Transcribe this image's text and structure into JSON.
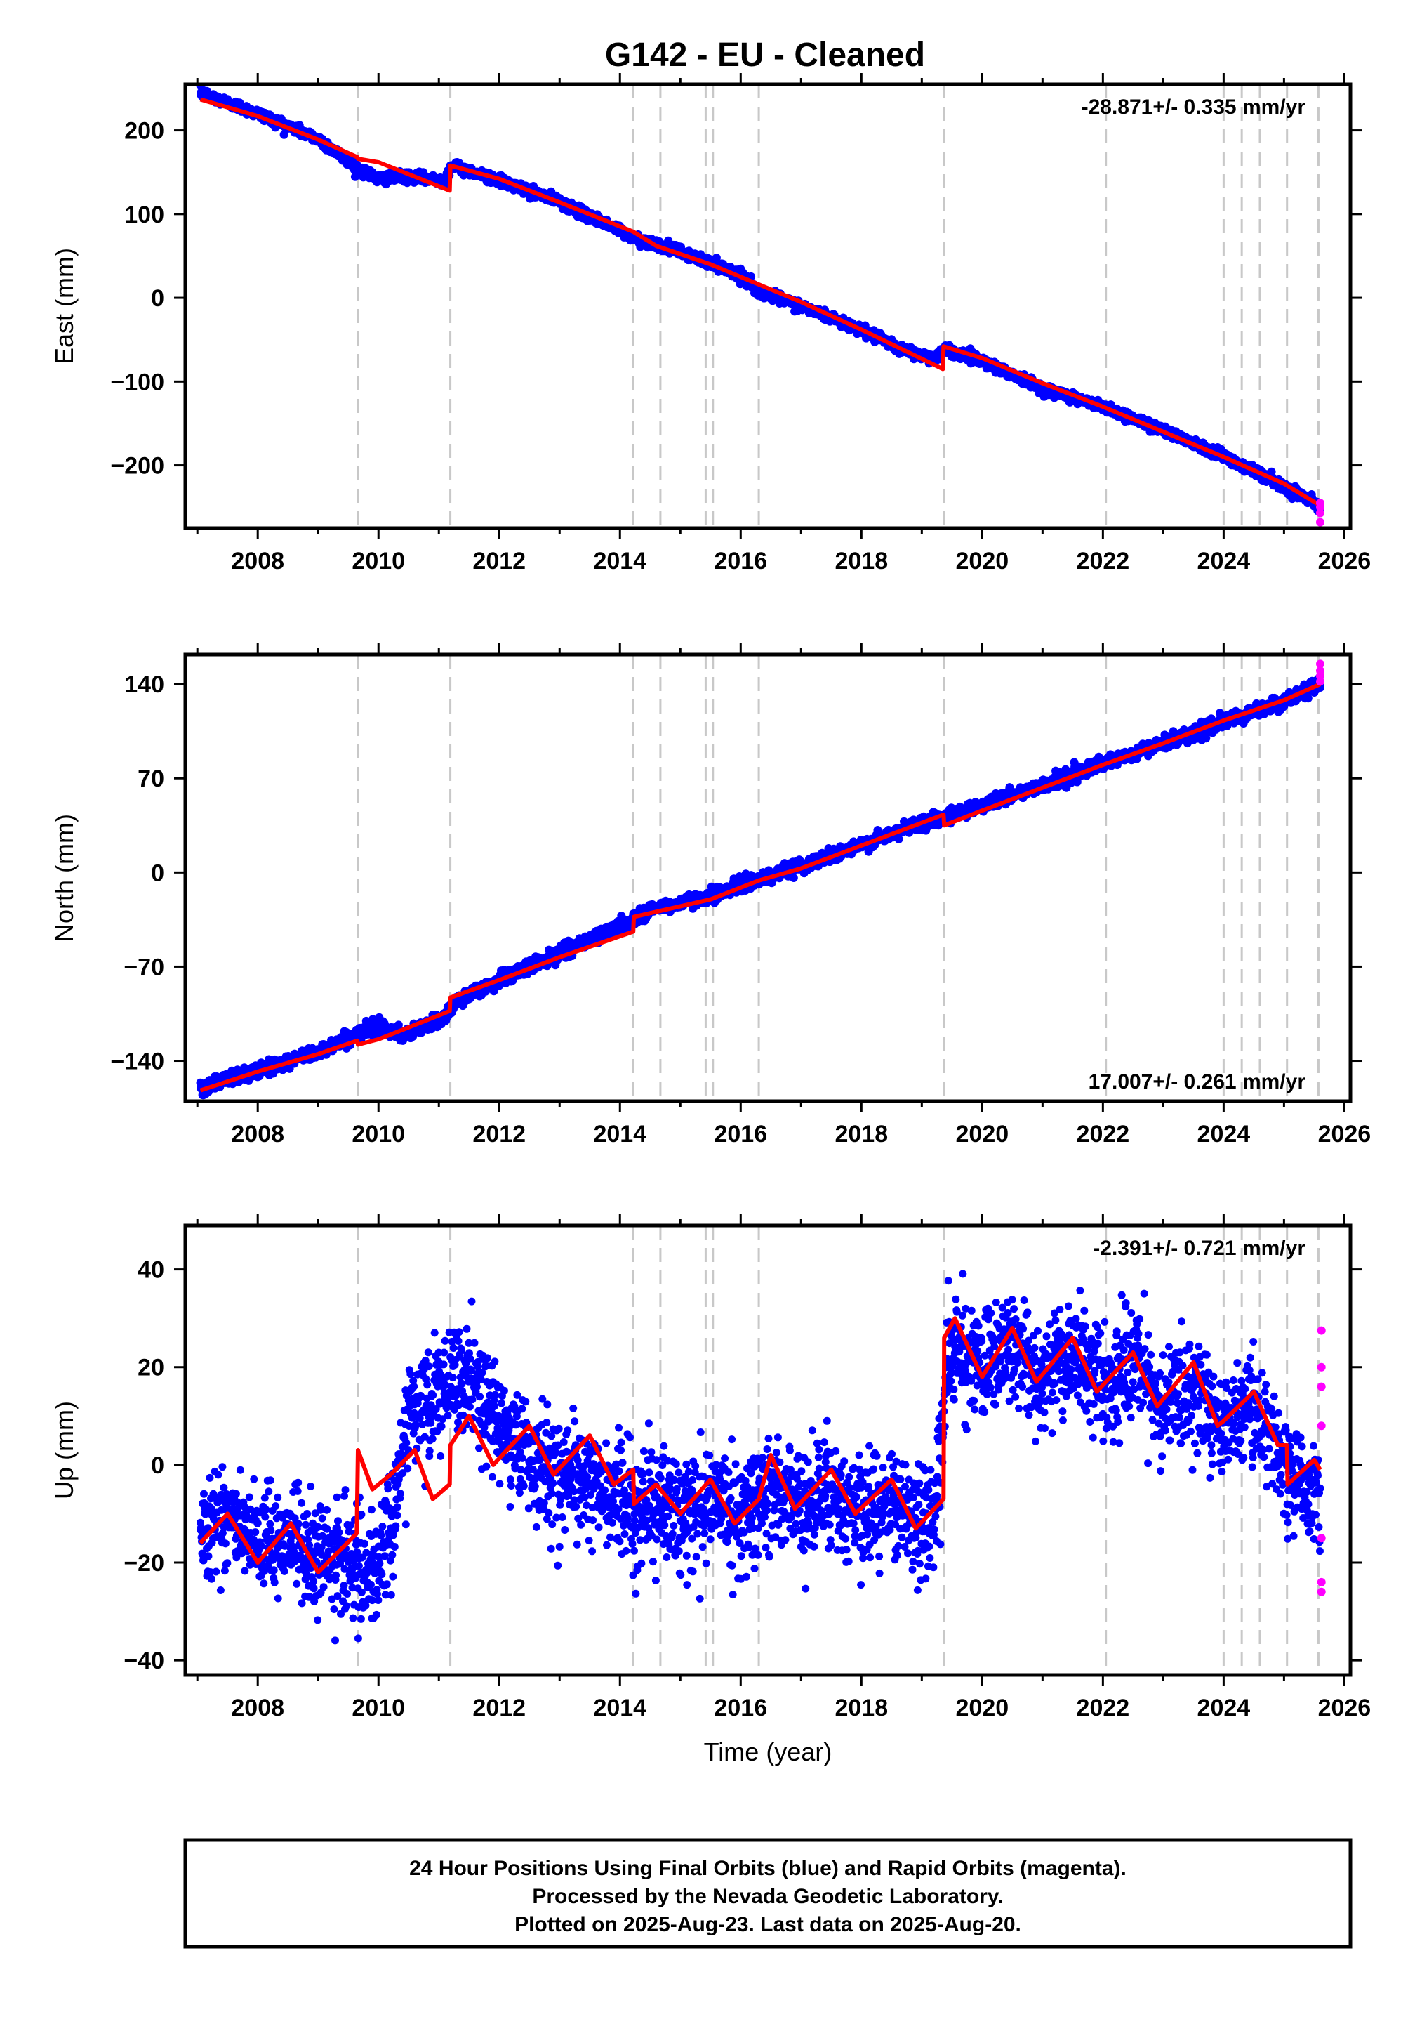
{
  "figure": {
    "title": "G142  - EU - Cleaned",
    "footer_lines": [
      "24 Hour Positions Using Final Orbits (blue) and Rapid Orbits (magenta).",
      "Processed by the Nevada Geodetic Laboratory.",
      "Plotted on 2025-Aug-23. Last data on 2025-Aug-20."
    ],
    "colors": {
      "final_orbits": "#0000ff",
      "rapid_orbits": "#ff00ff",
      "model": "#ff0000",
      "step_lines": "#c8c8c8"
    }
  },
  "chart_data": [
    {
      "type": "scatter",
      "name": "east",
      "ylabel": "East (mm)",
      "xlabel": "",
      "rate_label": "-28.871+/- 0.335 mm/yr",
      "rate_position": "top-right",
      "xlim": [
        2006.8,
        2026.1
      ],
      "ylim": [
        -275,
        255
      ],
      "xticks": [
        2008,
        2010,
        2012,
        2014,
        2016,
        2018,
        2020,
        2022,
        2024,
        2026
      ],
      "xtick_labels": [
        "2008",
        "2010",
        "2012",
        "2014",
        "2016",
        "2018",
        "2020",
        "2022",
        "2024",
        "2026"
      ],
      "yticks": [
        -200,
        -100,
        0,
        100,
        200
      ],
      "ytick_labels": [
        "−200",
        "−100",
        "0",
        "100",
        "200"
      ],
      "rate_mm_per_yr": -28.871,
      "final_orbits_trend": [
        [
          2007.05,
          245
        ],
        [
          2008.0,
          220
        ],
        [
          2009.0,
          190
        ],
        [
          2009.65,
          155
        ],
        [
          2010.0,
          142
        ],
        [
          2010.5,
          145
        ],
        [
          2011.1,
          140
        ],
        [
          2011.2,
          158
        ],
        [
          2012.0,
          140
        ],
        [
          2013.0,
          115
        ],
        [
          2014.0,
          80
        ],
        [
          2014.2,
          72
        ],
        [
          2015.0,
          55
        ],
        [
          2016.0,
          28
        ],
        [
          2016.3,
          8
        ],
        [
          2017.0,
          -10
        ],
        [
          2018.0,
          -38
        ],
        [
          2018.6,
          -60
        ],
        [
          2019.2,
          -72
        ],
        [
          2019.4,
          -62
        ],
        [
          2020.0,
          -75
        ],
        [
          2021.0,
          -108
        ],
        [
          2022.0,
          -130
        ],
        [
          2023.0,
          -158
        ],
        [
          2024.0,
          -188
        ],
        [
          2025.0,
          -225
        ],
        [
          2025.6,
          -248
        ]
      ],
      "model": [
        [
          2007.05,
          237
        ],
        [
          2008.0,
          217
        ],
        [
          2009.0,
          189
        ],
        [
          2009.65,
          168
        ],
        [
          2009.66,
          166
        ],
        [
          2010.0,
          162
        ],
        [
          2011.18,
          128
        ],
        [
          2011.19,
          158
        ],
        [
          2012.0,
          142
        ],
        [
          2013.0,
          114
        ],
        [
          2014.22,
          79
        ],
        [
          2014.6,
          62
        ],
        [
          2015.5,
          40
        ],
        [
          2016.3,
          16
        ],
        [
          2017.0,
          -5
        ],
        [
          2018.0,
          -38
        ],
        [
          2019.35,
          -85
        ],
        [
          2019.36,
          -58
        ],
        [
          2020.0,
          -72
        ],
        [
          2021.0,
          -102
        ],
        [
          2022.0,
          -130
        ],
        [
          2023.0,
          -160
        ],
        [
          2024.0,
          -190
        ],
        [
          2025.0,
          -222
        ],
        [
          2025.6,
          -248
        ]
      ],
      "rapid_orbits": [
        [
          2025.6,
          -245
        ],
        [
          2025.6,
          -250
        ],
        [
          2025.6,
          -257
        ],
        [
          2025.6,
          -268
        ]
      ],
      "noise_mm": 3,
      "step_dates": [
        2009.66,
        2011.19,
        2014.22,
        2014.67,
        2015.42,
        2015.54,
        2016.3,
        2019.37,
        2022.05,
        2024.0,
        2024.3,
        2024.6,
        2025.05,
        2025.57
      ]
    },
    {
      "type": "scatter",
      "name": "north",
      "ylabel": "North (mm)",
      "xlabel": "",
      "rate_label": "17.007+/- 0.261 mm/yr",
      "rate_position": "bottom-right",
      "xlim": [
        2006.8,
        2026.1
      ],
      "ylim": [
        -170,
        162
      ],
      "xticks": [
        2008,
        2010,
        2012,
        2014,
        2016,
        2018,
        2020,
        2022,
        2024,
        2026
      ],
      "xtick_labels": [
        "2008",
        "2010",
        "2012",
        "2014",
        "2016",
        "2018",
        "2020",
        "2022",
        "2024",
        "2026"
      ],
      "yticks": [
        -140,
        -70,
        0,
        70,
        140
      ],
      "ytick_labels": [
        "−140",
        "−70",
        "0",
        "70",
        "140"
      ],
      "rate_mm_per_yr": 17.007,
      "final_orbits_trend": [
        [
          2007.05,
          -160
        ],
        [
          2008.0,
          -148
        ],
        [
          2009.0,
          -133
        ],
        [
          2009.65,
          -120
        ],
        [
          2010.0,
          -113
        ],
        [
          2010.4,
          -122
        ],
        [
          2011.1,
          -108
        ],
        [
          2011.2,
          -98
        ],
        [
          2012.0,
          -80
        ],
        [
          2013.0,
          -60
        ],
        [
          2014.0,
          -40
        ],
        [
          2014.5,
          -28
        ],
        [
          2015.5,
          -17
        ],
        [
          2016.3,
          -5
        ],
        [
          2017.0,
          5
        ],
        [
          2018.0,
          20
        ],
        [
          2019.0,
          37
        ],
        [
          2019.4,
          42
        ],
        [
          2020.0,
          50
        ],
        [
          2021.0,
          65
        ],
        [
          2022.0,
          80
        ],
        [
          2023.0,
          96
        ],
        [
          2024.0,
          112
        ],
        [
          2025.0,
          127
        ],
        [
          2025.6,
          140
        ]
      ],
      "model": [
        [
          2007.05,
          -162
        ],
        [
          2008.0,
          -148
        ],
        [
          2009.0,
          -135
        ],
        [
          2009.65,
          -125
        ],
        [
          2009.66,
          -128
        ],
        [
          2010.0,
          -124
        ],
        [
          2011.18,
          -103
        ],
        [
          2011.19,
          -93
        ],
        [
          2012.0,
          -80
        ],
        [
          2013.0,
          -63
        ],
        [
          2014.22,
          -44
        ],
        [
          2014.23,
          -33
        ],
        [
          2015.5,
          -20
        ],
        [
          2016.3,
          -6
        ],
        [
          2017.0,
          3
        ],
        [
          2018.0,
          20
        ],
        [
          2019.36,
          43
        ],
        [
          2019.37,
          35
        ],
        [
          2020.0,
          46
        ],
        [
          2021.0,
          63
        ],
        [
          2022.0,
          80
        ],
        [
          2023.0,
          96
        ],
        [
          2024.0,
          113
        ],
        [
          2025.0,
          128
        ],
        [
          2025.6,
          140
        ]
      ],
      "rapid_orbits": [
        [
          2025.6,
          142
        ],
        [
          2025.6,
          146
        ],
        [
          2025.6,
          150
        ],
        [
          2025.6,
          155
        ]
      ],
      "noise_mm": 2.5,
      "step_dates": [
        2009.66,
        2011.19,
        2014.22,
        2014.67,
        2015.42,
        2015.54,
        2016.3,
        2019.37,
        2022.05,
        2024.0,
        2024.3,
        2024.6,
        2025.05,
        2025.57
      ]
    },
    {
      "type": "scatter",
      "name": "up",
      "ylabel": "Up (mm)",
      "xlabel": "Time (year)",
      "rate_label": "-2.391+/- 0.721 mm/yr",
      "rate_position": "top-right",
      "xlim": [
        2006.8,
        2026.1
      ],
      "ylim": [
        -43,
        49
      ],
      "xticks": [
        2008,
        2010,
        2012,
        2014,
        2016,
        2018,
        2020,
        2022,
        2024,
        2026
      ],
      "xtick_labels": [
        "2008",
        "2010",
        "2012",
        "2014",
        "2016",
        "2018",
        "2020",
        "2022",
        "2024",
        "2026"
      ],
      "yticks": [
        -40,
        -20,
        0,
        20,
        40
      ],
      "ytick_labels": [
        "−40",
        "−20",
        "0",
        "20",
        "40"
      ],
      "rate_mm_per_yr": -2.391,
      "final_orbits_trend": [
        [
          2007.05,
          -12
        ],
        [
          2007.5,
          -10
        ],
        [
          2008.0,
          -18
        ],
        [
          2008.5,
          -14
        ],
        [
          2009.0,
          -20
        ],
        [
          2009.5,
          -18
        ],
        [
          2009.9,
          -25
        ],
        [
          2010.2,
          -12
        ],
        [
          2010.5,
          10
        ],
        [
          2011.0,
          14
        ],
        [
          2011.5,
          18
        ],
        [
          2012.0,
          8
        ],
        [
          2012.5,
          2
        ],
        [
          2013.0,
          -2
        ],
        [
          2013.5,
          -3
        ],
        [
          2014.0,
          -8
        ],
        [
          2014.5,
          -8
        ],
        [
          2015.0,
          -10
        ],
        [
          2015.5,
          -7
        ],
        [
          2016.0,
          -10
        ],
        [
          2016.5,
          -5
        ],
        [
          2017.0,
          -8
        ],
        [
          2017.5,
          -5
        ],
        [
          2018.0,
          -10
        ],
        [
          2018.5,
          -8
        ],
        [
          2019.2,
          -12
        ],
        [
          2019.45,
          24
        ],
        [
          2020.0,
          20
        ],
        [
          2020.5,
          24
        ],
        [
          2021.0,
          18
        ],
        [
          2021.5,
          22
        ],
        [
          2022.0,
          16
        ],
        [
          2022.5,
          20
        ],
        [
          2023.0,
          12
        ],
        [
          2023.5,
          16
        ],
        [
          2024.0,
          8
        ],
        [
          2024.5,
          12
        ],
        [
          2025.0,
          0
        ],
        [
          2025.6,
          -8
        ]
      ],
      "model": [
        [
          2007.05,
          -16
        ],
        [
          2007.5,
          -10
        ],
        [
          2008.0,
          -20
        ],
        [
          2008.55,
          -12
        ],
        [
          2009.0,
          -22
        ],
        [
          2009.64,
          -14
        ],
        [
          2009.66,
          3
        ],
        [
          2009.9,
          -5
        ],
        [
          2010.2,
          -2
        ],
        [
          2010.6,
          3
        ],
        [
          2010.9,
          -7
        ],
        [
          2011.18,
          -4
        ],
        [
          2011.19,
          4
        ],
        [
          2011.5,
          10
        ],
        [
          2011.9,
          0
        ],
        [
          2012.5,
          8
        ],
        [
          2012.9,
          -2
        ],
        [
          2013.5,
          6
        ],
        [
          2013.9,
          -4
        ],
        [
          2014.22,
          -1
        ],
        [
          2014.23,
          -8
        ],
        [
          2014.6,
          -4
        ],
        [
          2015.0,
          -10
        ],
        [
          2015.5,
          -3
        ],
        [
          2015.9,
          -12
        ],
        [
          2016.3,
          -7
        ],
        [
          2016.5,
          2
        ],
        [
          2016.9,
          -9
        ],
        [
          2017.5,
          -1
        ],
        [
          2017.9,
          -10
        ],
        [
          2018.5,
          -3
        ],
        [
          2018.9,
          -13
        ],
        [
          2019.36,
          -7
        ],
        [
          2019.37,
          26
        ],
        [
          2019.55,
          30
        ],
        [
          2020.0,
          18
        ],
        [
          2020.5,
          28
        ],
        [
          2020.9,
          17
        ],
        [
          2021.5,
          26
        ],
        [
          2021.9,
          15
        ],
        [
          2022.5,
          23
        ],
        [
          2022.9,
          12
        ],
        [
          2023.5,
          21
        ],
        [
          2023.9,
          8
        ],
        [
          2024.0,
          9
        ],
        [
          2024.5,
          15
        ],
        [
          2024.9,
          4
        ],
        [
          2025.05,
          4
        ],
        [
          2025.06,
          -4
        ],
        [
          2025.5,
          1
        ],
        [
          2025.6,
          -1
        ]
      ],
      "rapid_orbits": [
        [
          2025.62,
          27.5
        ],
        [
          2025.62,
          20
        ],
        [
          2025.62,
          16
        ],
        [
          2025.62,
          8
        ],
        [
          2025.62,
          -15
        ],
        [
          2025.62,
          -24
        ],
        [
          2025.62,
          -26
        ]
      ],
      "noise_mm": 5.5,
      "step_dates": [
        2009.66,
        2011.19,
        2014.22,
        2014.67,
        2015.42,
        2015.54,
        2016.3,
        2019.37,
        2022.05,
        2024.0,
        2024.3,
        2024.6,
        2025.05,
        2025.57
      ]
    }
  ]
}
